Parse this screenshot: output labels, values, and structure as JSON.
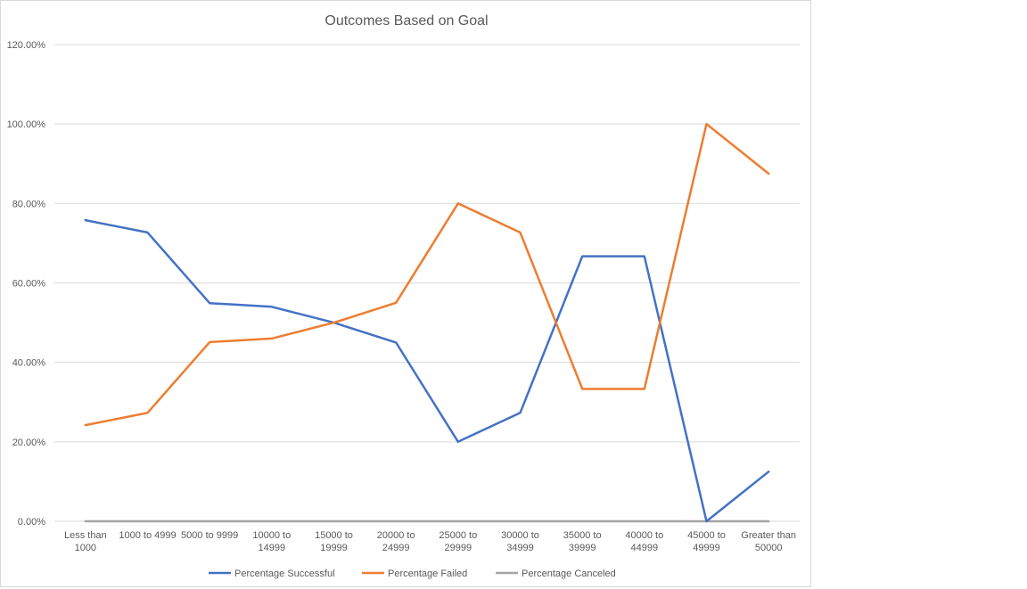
{
  "chart_data": {
    "type": "line",
    "title": "Outcomes Based on Goal",
    "xlabel": "",
    "ylabel": "",
    "categories": [
      [
        "Less than",
        "1000"
      ],
      [
        "1000 to 4999"
      ],
      [
        "5000 to 9999"
      ],
      [
        "10000 to",
        "14999"
      ],
      [
        "15000 to",
        "19999"
      ],
      [
        "20000 to",
        "24999"
      ],
      [
        "25000 to",
        "29999"
      ],
      [
        "30000 to",
        "34999"
      ],
      [
        "35000 to",
        "39999"
      ],
      [
        "40000 to",
        "44999"
      ],
      [
        "45000 to",
        "49999"
      ],
      [
        "Greater than",
        "50000"
      ]
    ],
    "y_ticks": [
      "0.00%",
      "20.00%",
      "40.00%",
      "60.00%",
      "80.00%",
      "100.00%",
      "120.00%"
    ],
    "ylim": [
      0,
      120
    ],
    "grid": true,
    "legend_position": "bottom",
    "series": [
      {
        "name": "Percentage Successful",
        "color": "#4472c4",
        "values": [
          75.8,
          72.7,
          54.9,
          54.0,
          50.0,
          45.0,
          20.0,
          27.3,
          66.7,
          66.7,
          0.0,
          12.5
        ]
      },
      {
        "name": "Percentage Failed",
        "color": "#ed7d31",
        "values": [
          24.2,
          27.3,
          45.1,
          46.0,
          50.0,
          55.0,
          80.0,
          72.7,
          33.3,
          33.3,
          100.0,
          87.5
        ]
      },
      {
        "name": "Percentage Canceled",
        "color": "#a5a5a5",
        "values": [
          0,
          0,
          0,
          0,
          0,
          0,
          0,
          0,
          0,
          0,
          0,
          0
        ]
      }
    ]
  }
}
